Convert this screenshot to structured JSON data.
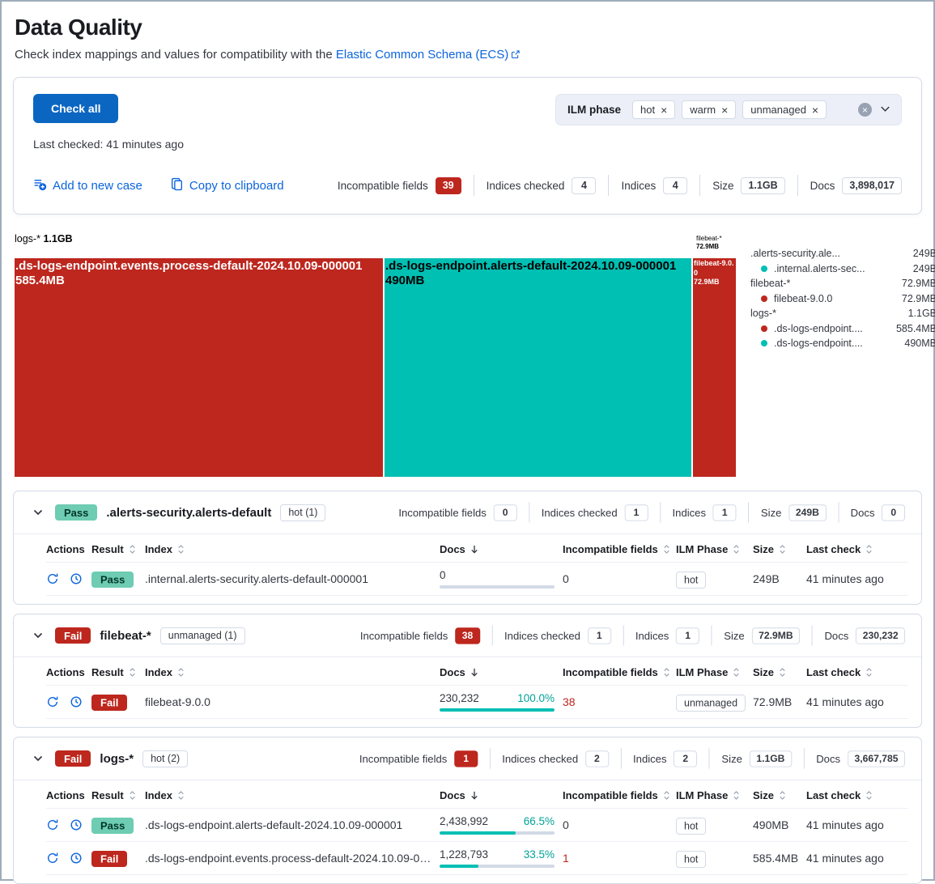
{
  "colors": {
    "primary_blue": "#0b66c2",
    "link_blue": "#0b64dd",
    "danger_red": "#bd271e",
    "success_green": "#6dccb1",
    "vis_teal": "#00bfb3",
    "badge_border": "#d3dae6"
  },
  "header": {
    "title": "Data Quality",
    "subtitle_prefix": "Check index mappings and values for compatibility with the ",
    "link_text": "Elastic Common Schema (ECS)"
  },
  "controls": {
    "check_all_label": "Check all",
    "last_checked": "Last checked: 41 minutes ago",
    "ilm_filter": {
      "label": "ILM phase",
      "selected": [
        "hot",
        "warm",
        "unmanaged"
      ]
    },
    "actions": {
      "add_case": "Add to new case",
      "copy": "Copy to clipboard"
    }
  },
  "summary": {
    "stats": [
      {
        "label": "Incompatible fields",
        "value": "39",
        "danger": true
      },
      {
        "label": "Indices checked",
        "value": "4",
        "danger": false
      },
      {
        "label": "Indices",
        "value": "4",
        "danger": false
      },
      {
        "label": "Size",
        "value": "1.1GB",
        "danger": false
      },
      {
        "label": "Docs",
        "value": "3,898,017",
        "danger": false
      }
    ]
  },
  "chart_data": {
    "type": "treemap",
    "legend_position": "right",
    "groups": [
      {
        "name": "logs-*",
        "total": "1.1GB",
        "children": [
          {
            "name": ".ds-logs-endpoint.events.process-default-2024.10.09-000001",
            "label": "585.4MB",
            "size_mb": 585.4,
            "color": "#bd271e",
            "text_color": "#ffffff"
          },
          {
            "name": ".ds-logs-endpoint.alerts-default-2024.10.09-000001",
            "label": "490MB",
            "size_mb": 490,
            "color": "#00bfb3",
            "text_color": "#000000"
          }
        ]
      },
      {
        "name": "filebeat-*",
        "total": "72.9MB",
        "children": [
          {
            "name": "filebeat-9.0.0",
            "label": "72.9MB",
            "size_mb": 72.9,
            "color": "#bd271e",
            "text_color": "#ffffff"
          }
        ]
      },
      {
        "name": ".alerts-security.alerts-default",
        "total": "249B",
        "children": [
          {
            "name": ".internal.alerts-security.alerts-default-000001",
            "label": "249B",
            "size_mb": 0.000249,
            "color": "#00bfb3",
            "text_color": "#000000"
          }
        ]
      }
    ],
    "legend": [
      {
        "name": ".alerts-security.ale...",
        "value": "249B",
        "dot": null
      },
      {
        "name": ".internal.alerts-sec...",
        "value": "249B",
        "dot": "#00bfb3"
      },
      {
        "name": "filebeat-*",
        "value": "72.9MB",
        "dot": null
      },
      {
        "name": "filebeat-9.0.0",
        "value": "72.9MB",
        "dot": "#bd271e"
      },
      {
        "name": "logs-*",
        "value": "1.1GB",
        "dot": null
      },
      {
        "name": ".ds-logs-endpoint....",
        "value": "585.4MB",
        "dot": "#bd271e"
      },
      {
        "name": ".ds-logs-endpoint....",
        "value": "490MB",
        "dot": "#00bfb3"
      }
    ]
  },
  "table_columns": {
    "actions": "Actions",
    "result": "Result",
    "index": "Index",
    "docs": "Docs",
    "incompatible": "Incompatible fields",
    "ilm": "ILM Phase",
    "size": "Size",
    "last_check": "Last check"
  },
  "panels": [
    {
      "result": "Pass",
      "title": ".alerts-security.alerts-default",
      "ilm_badge": "hot (1)",
      "stats": [
        {
          "label": "Incompatible fields",
          "value": "0",
          "danger": false
        },
        {
          "label": "Indices checked",
          "value": "1",
          "danger": false
        },
        {
          "label": "Indices",
          "value": "1",
          "danger": false
        },
        {
          "label": "Size",
          "value": "249B",
          "danger": false
        },
        {
          "label": "Docs",
          "value": "0",
          "danger": false
        }
      ],
      "rows": [
        {
          "result": "Pass",
          "index": ".internal.alerts-security.alerts-default-000001",
          "docs": "0",
          "docs_pct": "",
          "docs_pct_num": 0,
          "incompatible": "0",
          "incompatible_danger": false,
          "ilm": "hot",
          "size": "249B",
          "last_check": "41 minutes ago"
        }
      ]
    },
    {
      "result": "Fail",
      "title": "filebeat-*",
      "ilm_badge": "unmanaged (1)",
      "stats": [
        {
          "label": "Incompatible fields",
          "value": "38",
          "danger": true
        },
        {
          "label": "Indices checked",
          "value": "1",
          "danger": false
        },
        {
          "label": "Indices",
          "value": "1",
          "danger": false
        },
        {
          "label": "Size",
          "value": "72.9MB",
          "danger": false
        },
        {
          "label": "Docs",
          "value": "230,232",
          "danger": false
        }
      ],
      "rows": [
        {
          "result": "Fail",
          "index": "filebeat-9.0.0",
          "docs": "230,232",
          "docs_pct": "100.0%",
          "docs_pct_num": 100,
          "incompatible": "38",
          "incompatible_danger": true,
          "ilm": "unmanaged",
          "size": "72.9MB",
          "last_check": "41 minutes ago"
        }
      ]
    },
    {
      "result": "Fail",
      "title": "logs-*",
      "ilm_badge": "hot (2)",
      "stats": [
        {
          "label": "Incompatible fields",
          "value": "1",
          "danger": true
        },
        {
          "label": "Indices checked",
          "value": "2",
          "danger": false
        },
        {
          "label": "Indices",
          "value": "2",
          "danger": false
        },
        {
          "label": "Size",
          "value": "1.1GB",
          "danger": false
        },
        {
          "label": "Docs",
          "value": "3,667,785",
          "danger": false
        }
      ],
      "rows": [
        {
          "result": "Pass",
          "index": ".ds-logs-endpoint.alerts-default-2024.10.09-000001",
          "docs": "2,438,992",
          "docs_pct": "66.5%",
          "docs_pct_num": 66.5,
          "incompatible": "0",
          "incompatible_danger": false,
          "ilm": "hot",
          "size": "490MB",
          "last_check": "41 minutes ago"
        },
        {
          "result": "Fail",
          "index": ".ds-logs-endpoint.events.process-default-2024.10.09-000001",
          "docs": "1,228,793",
          "docs_pct": "33.5%",
          "docs_pct_num": 33.5,
          "incompatible": "1",
          "incompatible_danger": true,
          "ilm": "hot",
          "size": "585.4MB",
          "last_check": "41 minutes ago"
        }
      ]
    }
  ]
}
